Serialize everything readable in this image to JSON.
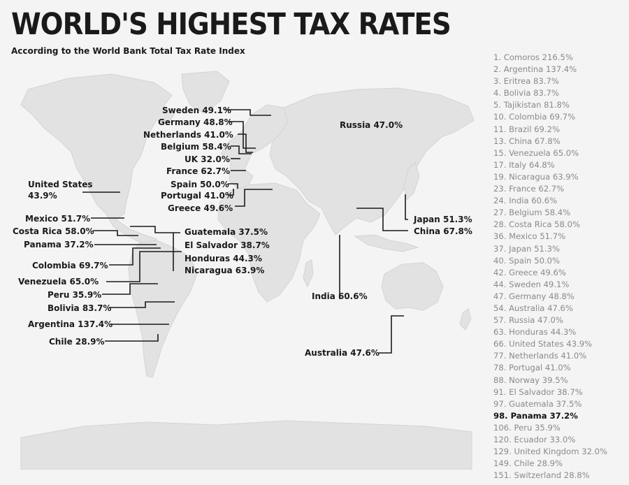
{
  "title": "WORLD'S HIGHEST TAX RATES",
  "subtitle": "According to the World Bank Total Tax Rate Index",
  "colors": {
    "background": "#f4f4f4",
    "land": "#e2e2e2",
    "text": "#1a1a1a",
    "rank_text": "#8a8a8a"
  },
  "map_labels": {
    "sweden": "Sweden 49.1%",
    "germany": "Germany 48.8%",
    "netherlands": "Netherlands 41.0%",
    "belgium": "Belgium 58.4%",
    "uk": "UK 32.0%",
    "france": "France 62.7%",
    "spain": "Spain 50.0%",
    "portugal": "Portugal 41.0%",
    "greece": "Greece 49.6%",
    "russia": "Russia 47.0%",
    "united_states_line1": "United States",
    "united_states_line2": "43.9%",
    "mexico": "Mexico 51.7%",
    "costa_rica": "Costa Rica 58.0%",
    "panama": "Panama 37.2%",
    "colombia": "Colombia 69.7%",
    "venezuela": "Venezuela 65.0%",
    "peru": "Peru 35.9%",
    "bolivia": "Bolivia 83.7%",
    "argentina": "Argentina 137.4%",
    "chile": "Chile 28.9%",
    "guatemala": "Guatemala 37.5%",
    "el_salvador": "El Salvador 38.7%",
    "honduras": "Honduras 44.3%",
    "nicaragua": "Nicaragua 63.9%",
    "japan": "Japan 51.3%",
    "china": "China 67.8%",
    "india": "India 60.6%",
    "australia": "Australia 47.6%"
  },
  "ranking": [
    "1. Comoros 216.5%",
    "2. Argentina 137.4%",
    "3. Eritrea 83.7%",
    "4. Bolivia 83.7%",
    "5. Tajikistan 81.8%",
    "10. Colombia 69.7%",
    "11. Brazil 69.2%",
    "13. China 67.8%",
    "15. Venezuela 65.0%",
    "17. Italy 64.8%",
    "19. Nicaragua 63.9%",
    "23. France 62.7%",
    "24. India 60.6%",
    "27. Belgium 58.4%",
    "28. Costa Rica 58.0%",
    "36. Mexico 51.7%",
    "37. Japan 51.3%",
    "40. Spain 50.0%",
    "42. Greece 49.6%",
    "44. Sweden 49.1%",
    "47. Germany 48.8%",
    "54. Australia 47.6%",
    "57. Russia 47.0%",
    "63. Honduras 44.3%",
    "66. United States 43.9%",
    "77. Netherlands 41.0%",
    "78. Portugal 41.0%",
    "88. Norway 39.5%",
    "91. El Salvador 38.7%",
    "97. Guatemala 37.5%",
    "98. Panama 37.2%",
    "106. Peru 35.9%",
    "120. Ecuador 33.0%",
    "129. United Kingdom 32.0%",
    "149. Chile 28.9%",
    "151. Switzerland 28.8%"
  ],
  "highlighted_rank": "98. Panama 37.2%"
}
